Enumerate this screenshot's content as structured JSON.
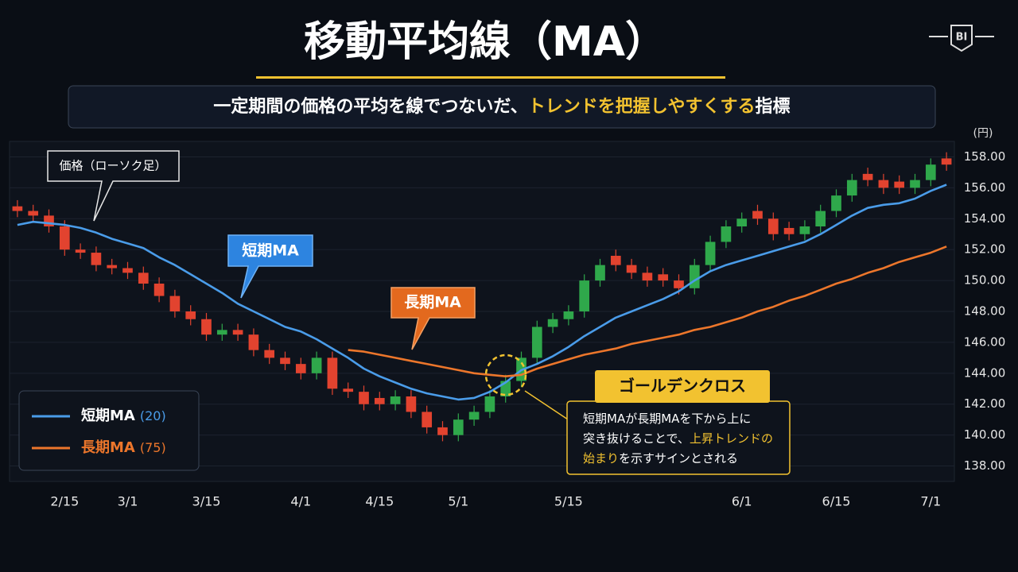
{
  "logo": "BI",
  "chart_data": {
    "type": "candlestick",
    "title": "移動平均線（MA）",
    "subtitle": [
      {
        "text": "一定期間の価格の平均を線でつないだ、"
      },
      {
        "text": "トレンドを把握しやすくする",
        "highlight": true
      },
      {
        "text": "指標"
      }
    ],
    "y_unit": "(円)",
    "categories": [
      null,
      null,
      null,
      "2/15",
      null,
      null,
      null,
      "3/1",
      null,
      null,
      null,
      null,
      "3/15",
      null,
      null,
      null,
      null,
      null,
      "4/1",
      null,
      null,
      null,
      null,
      "4/15",
      null,
      null,
      null,
      null,
      "5/1",
      null,
      null,
      null,
      null,
      null,
      null,
      "5/15",
      null,
      null,
      null,
      null,
      null,
      null,
      null,
      null,
      null,
      null,
      "6/1",
      null,
      null,
      null,
      null,
      null,
      "6/15",
      null,
      null,
      null,
      null,
      null,
      "7/1",
      null
    ],
    "candles": {
      "up_color": "#2fa84b",
      "down_color": "#e2432f",
      "open": [
        154.8,
        154.5,
        154.2,
        153.5,
        152,
        151.8,
        151,
        150.8,
        150.5,
        149.8,
        149,
        148,
        147.5,
        146.5,
        146.8,
        146.5,
        145.5,
        145,
        144.6,
        144,
        145,
        143,
        142.8,
        142.4,
        142,
        142.5,
        141.5,
        140.5,
        140,
        141,
        141.5,
        142.5,
        143.5,
        145,
        147,
        147.5,
        148,
        150,
        151.6,
        151,
        150.5,
        150.4,
        150,
        149.5,
        151,
        152.5,
        153.5,
        154.5,
        154,
        153.4,
        153,
        153.5,
        154.5,
        155.5,
        156.9,
        156.5,
        156.4,
        156,
        156.5,
        157.9
      ],
      "high": [
        155.2,
        154.9,
        154.6,
        153.9,
        152.4,
        152.2,
        151.4,
        151.2,
        150.9,
        150.2,
        149.4,
        148.4,
        147.9,
        147.2,
        147.2,
        146.9,
        145.9,
        145.4,
        145.0,
        145.4,
        145.4,
        143.4,
        143.2,
        142.8,
        142.9,
        142.9,
        141.9,
        140.9,
        141.4,
        141.9,
        142.9,
        143.9,
        145.4,
        147.4,
        147.9,
        148.4,
        150.4,
        151.4,
        152.0,
        151.4,
        150.9,
        150.8,
        150.4,
        151.4,
        152.9,
        153.9,
        154.4,
        154.9,
        154.4,
        153.8,
        153.9,
        154.9,
        155.9,
        156.9,
        157.3,
        156.9,
        156.8,
        156.9,
        157.9,
        158.3
      ],
      "low": [
        154.1,
        153.8,
        153.1,
        151.6,
        151.4,
        150.6,
        150.4,
        150.1,
        149.4,
        148.6,
        147.6,
        147.1,
        146.1,
        146.1,
        146.1,
        145.1,
        144.6,
        144.2,
        143.6,
        143.6,
        142.6,
        142.4,
        141.6,
        141.6,
        141.6,
        141.1,
        140.1,
        139.6,
        139.6,
        140.6,
        141.1,
        142.1,
        143.1,
        144.6,
        146.6,
        147.1,
        147.6,
        149.6,
        150.6,
        150.1,
        149.6,
        149.6,
        149.1,
        149.1,
        150.6,
        152.1,
        153.1,
        153.6,
        152.6,
        152.6,
        152.6,
        153.1,
        154.1,
        155.1,
        156.1,
        155.6,
        155.6,
        155.6,
        156.1,
        157.1
      ],
      "close": [
        154.5,
        154.2,
        153.5,
        152,
        151.8,
        151,
        150.8,
        150.5,
        149.8,
        149,
        148,
        147.5,
        146.5,
        146.8,
        146.5,
        145.5,
        145,
        144.6,
        144,
        145,
        143,
        142.8,
        142,
        142,
        142.5,
        141.5,
        140.5,
        140,
        141,
        141.5,
        142.5,
        143.5,
        145,
        147,
        147.5,
        148,
        150,
        151,
        151,
        150.5,
        150,
        150,
        149.5,
        151,
        152.5,
        153.5,
        154,
        154,
        153,
        153,
        153.5,
        154.5,
        155.5,
        156.5,
        156.5,
        156,
        156,
        156.5,
        157.5,
        157.5
      ]
    },
    "series": [
      {
        "name": "短期MA",
        "period_label": "(20)",
        "color": "#4a9ce9",
        "values": [
          153.6,
          153.8,
          153.7,
          153.6,
          153.4,
          153.1,
          152.7,
          152.4,
          152.1,
          151.5,
          151,
          150.4,
          149.8,
          149.2,
          148.5,
          148,
          147.5,
          147,
          146.7,
          146.2,
          145.6,
          145,
          144.3,
          143.8,
          143.4,
          143,
          142.7,
          142.5,
          142.3,
          142.4,
          142.8,
          143.4,
          144.2,
          144.6,
          145.1,
          145.7,
          146.4,
          147,
          147.6,
          148,
          148.4,
          148.8,
          149.3,
          150,
          150.6,
          151,
          151.3,
          151.6,
          151.9,
          152.2,
          152.5,
          153,
          153.6,
          154.2,
          154.7,
          154.9,
          155,
          155.3,
          155.8,
          156.2
        ]
      },
      {
        "name": "長期MA",
        "period_label": "(75)",
        "color": "#ec762b",
        "values": [
          null,
          null,
          null,
          null,
          null,
          null,
          null,
          null,
          null,
          null,
          null,
          null,
          null,
          null,
          null,
          null,
          null,
          null,
          null,
          null,
          null,
          145.5,
          145.4,
          145.2,
          145.0,
          144.8,
          144.6,
          144.4,
          144.2,
          144.0,
          143.9,
          143.8,
          143.9,
          144.3,
          144.6,
          144.9,
          145.2,
          145.4,
          145.6,
          145.9,
          146.1,
          146.3,
          146.5,
          146.8,
          147.0,
          147.3,
          147.6,
          148.0,
          148.3,
          148.7,
          149.0,
          149.4,
          149.8,
          150.1,
          150.5,
          150.8,
          151.2,
          151.5,
          151.8,
          152.2
        ]
      }
    ],
    "ylim": [
      137,
      159
    ],
    "yticks": [
      {
        "value": 138,
        "label": "138.00"
      },
      {
        "value": 140,
        "label": "140.00"
      },
      {
        "value": 142,
        "label": "142.00"
      },
      {
        "value": 144,
        "label": "144.00"
      },
      {
        "value": 146,
        "label": "146.00"
      },
      {
        "value": 148,
        "label": "148.00"
      },
      {
        "value": 150,
        "label": "150.00"
      },
      {
        "value": 152,
        "label": "152.00"
      },
      {
        "value": 154,
        "label": "154.00"
      },
      {
        "value": 156,
        "label": "156.00"
      },
      {
        "value": 158,
        "label": "158.00"
      }
    ],
    "grid": true,
    "annotations": {
      "price": "価格（ローソク足）",
      "short": "短期MA",
      "long": "長期MA",
      "cross": "ゴールデンクロス",
      "note": [
        [
          {
            "text": "短期MAが長期MAを下から上に"
          }
        ],
        [
          {
            "text": "突き抜けることで、"
          },
          {
            "text": "上昇トレンドの",
            "highlight": true
          }
        ],
        [
          {
            "text": "始まり",
            "highlight": true
          },
          {
            "text": "を示すサインとされる"
          }
        ]
      ]
    }
  }
}
